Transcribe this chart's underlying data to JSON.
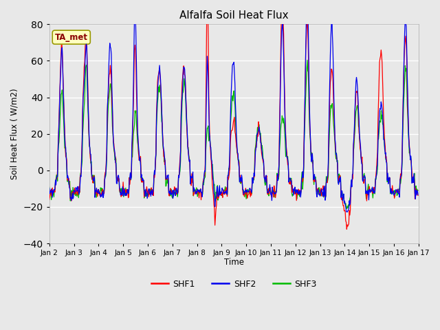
{
  "title": "Alfalfa Soil Heat Flux",
  "ylabel": "Soil Heat Flux ( W/m2)",
  "xlabel": "Time",
  "ylim": [
    -40,
    80
  ],
  "fig_facecolor": "#e8e8e8",
  "ax_facecolor": "#e8e8e8",
  "annotation_text": "TA_met",
  "annotation_color": "#8b0000",
  "annotation_bg": "#ffffc0",
  "annotation_edge": "#999900",
  "line_colors": {
    "SHF1": "#ff0000",
    "SHF2": "#0000ee",
    "SHF3": "#00bb00"
  },
  "yticks": [
    -40,
    -20,
    0,
    20,
    40,
    60,
    80
  ],
  "x_tick_labels": [
    "Jan 2",
    "Jan 3",
    "Jan 4",
    "Jan 5",
    "Jan 6",
    "Jan 7",
    "Jan 8",
    "Jan 9",
    "Jan 10",
    "Jan 11",
    "Jan 12",
    "Jan 13",
    "Jan 14",
    "Jan 15",
    "Jan 16",
    "Jan 17"
  ],
  "grid_color": "#ffffff",
  "grid_lw": 1.0,
  "line_lw": 0.9
}
